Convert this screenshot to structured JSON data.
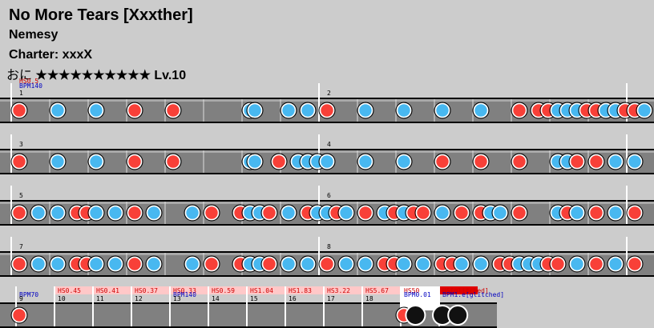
{
  "header": {
    "title": "No More Tears [Xxxther]",
    "artist": "Nemesy",
    "charter": "Charter: xxxX",
    "difficulty_name": "おに",
    "stars": "★★★★★★★★★★",
    "level": "Lv.10"
  },
  "colors": {
    "background": "#cccccc",
    "lane": "#808080",
    "don": "#f84038",
    "ka": "#48b8f0",
    "bar_line": "#ffffff",
    "hs_label": "#d00000",
    "bpm_label": "#0000c0",
    "hs_box": "#ffc8c8"
  },
  "rows": [
    {
      "bars": [
        {
          "number": "1",
          "labels": [
            {
              "text": "HS0.5",
              "color": "red"
            },
            {
              "text": "BPM140",
              "color": "blue"
            }
          ]
        },
        {
          "number": "2",
          "labels": []
        }
      ],
      "notes": [
        {
          "t": 0,
          "type": "don"
        },
        {
          "t": 2,
          "type": "ka"
        },
        {
          "t": 4,
          "type": "ka"
        },
        {
          "t": 6,
          "type": "don"
        },
        {
          "t": 8,
          "type": "don"
        },
        {
          "t": 12,
          "type": "ka"
        },
        {
          "t": 12.25,
          "type": "ka"
        },
        {
          "t": 14,
          "type": "ka"
        },
        {
          "t": 15,
          "type": "ka"
        },
        {
          "t": 16,
          "type": "don"
        },
        {
          "t": 18,
          "type": "ka"
        },
        {
          "t": 20,
          "type": "ka"
        },
        {
          "t": 22,
          "type": "ka"
        },
        {
          "t": 24,
          "type": "ka"
        },
        {
          "t": 26,
          "type": "don"
        },
        {
          "t": 27,
          "type": "don"
        },
        {
          "t": 27.5,
          "type": "don"
        },
        {
          "t": 28,
          "type": "ka"
        },
        {
          "t": 28.5,
          "type": "ka"
        },
        {
          "t": 29,
          "type": "ka"
        },
        {
          "t": 29.5,
          "type": "don"
        },
        {
          "t": 30,
          "type": "don"
        },
        {
          "t": 30.5,
          "type": "ka"
        },
        {
          "t": 31,
          "type": "ka"
        },
        {
          "t": 31.5,
          "type": "don"
        },
        {
          "t": 32,
          "type": "don"
        },
        {
          "t": 32.5,
          "type": "ka"
        }
      ]
    },
    {
      "bars": [
        {
          "number": "3",
          "labels": []
        },
        {
          "number": "4",
          "labels": []
        }
      ],
      "notes": [
        {
          "t": 0,
          "type": "don"
        },
        {
          "t": 2,
          "type": "ka"
        },
        {
          "t": 4,
          "type": "ka"
        },
        {
          "t": 6,
          "type": "don"
        },
        {
          "t": 8,
          "type": "don"
        },
        {
          "t": 12,
          "type": "ka"
        },
        {
          "t": 12.25,
          "type": "ka"
        },
        {
          "t": 13.5,
          "type": "don"
        },
        {
          "t": 14.5,
          "type": "ka"
        },
        {
          "t": 15,
          "type": "ka"
        },
        {
          "t": 15.5,
          "type": "ka"
        },
        {
          "t": 16,
          "type": "ka"
        },
        {
          "t": 18,
          "type": "ka"
        },
        {
          "t": 20,
          "type": "ka"
        },
        {
          "t": 22,
          "type": "don"
        },
        {
          "t": 24,
          "type": "don"
        },
        {
          "t": 26,
          "type": "don"
        },
        {
          "t": 28,
          "type": "ka"
        },
        {
          "t": 28.5,
          "type": "ka"
        },
        {
          "t": 29,
          "type": "don"
        },
        {
          "t": 30,
          "type": "don"
        },
        {
          "t": 31,
          "type": "ka"
        },
        {
          "t": 32,
          "type": "ka"
        }
      ]
    },
    {
      "bars": [
        {
          "number": "5",
          "labels": []
        },
        {
          "number": "6",
          "labels": []
        }
      ],
      "notes": [
        {
          "t": 0,
          "type": "don"
        },
        {
          "t": 1,
          "type": "ka"
        },
        {
          "t": 2,
          "type": "ka"
        },
        {
          "t": 3,
          "type": "don"
        },
        {
          "t": 3.5,
          "type": "don"
        },
        {
          "t": 4,
          "type": "ka"
        },
        {
          "t": 5,
          "type": "ka"
        },
        {
          "t": 6,
          "type": "don"
        },
        {
          "t": 7,
          "type": "ka"
        },
        {
          "t": 9,
          "type": "ka"
        },
        {
          "t": 10,
          "type": "don"
        },
        {
          "t": 11.5,
          "type": "don"
        },
        {
          "t": 12,
          "type": "ka"
        },
        {
          "t": 12.5,
          "type": "ka"
        },
        {
          "t": 13,
          "type": "don"
        },
        {
          "t": 14,
          "type": "ka"
        },
        {
          "t": 15,
          "type": "don"
        },
        {
          "t": 15.5,
          "type": "ka"
        },
        {
          "t": 16,
          "type": "ka"
        },
        {
          "t": 16.5,
          "type": "don"
        },
        {
          "t": 17,
          "type": "ka"
        },
        {
          "t": 18,
          "type": "don"
        },
        {
          "t": 19,
          "type": "ka"
        },
        {
          "t": 19.5,
          "type": "don"
        },
        {
          "t": 20,
          "type": "ka"
        },
        {
          "t": 20.5,
          "type": "don"
        },
        {
          "t": 21,
          "type": "don"
        },
        {
          "t": 22,
          "type": "ka"
        },
        {
          "t": 23,
          "type": "don"
        },
        {
          "t": 24,
          "type": "don"
        },
        {
          "t": 24.5,
          "type": "ka"
        },
        {
          "t": 25,
          "type": "ka"
        },
        {
          "t": 26,
          "type": "don"
        },
        {
          "t": 28,
          "type": "ka"
        },
        {
          "t": 28.5,
          "type": "don"
        },
        {
          "t": 29,
          "type": "ka"
        },
        {
          "t": 30,
          "type": "don"
        },
        {
          "t": 31,
          "type": "ka"
        },
        {
          "t": 32,
          "type": "don"
        }
      ]
    },
    {
      "bars": [
        {
          "number": "7",
          "labels": []
        },
        {
          "number": "8",
          "labels": []
        }
      ],
      "notes": [
        {
          "t": 0,
          "type": "don"
        },
        {
          "t": 1,
          "type": "ka"
        },
        {
          "t": 2,
          "type": "ka"
        },
        {
          "t": 3,
          "type": "don"
        },
        {
          "t": 3.5,
          "type": "don"
        },
        {
          "t": 4,
          "type": "ka"
        },
        {
          "t": 5,
          "type": "ka"
        },
        {
          "t": 6,
          "type": "don"
        },
        {
          "t": 7,
          "type": "ka"
        },
        {
          "t": 9,
          "type": "ka"
        },
        {
          "t": 10,
          "type": "don"
        },
        {
          "t": 11.5,
          "type": "don"
        },
        {
          "t": 12,
          "type": "ka"
        },
        {
          "t": 12.5,
          "type": "ka"
        },
        {
          "t": 13,
          "type": "don"
        },
        {
          "t": 14,
          "type": "ka"
        },
        {
          "t": 15,
          "type": "ka"
        },
        {
          "t": 16,
          "type": "don"
        },
        {
          "t": 17,
          "type": "ka"
        },
        {
          "t": 18,
          "type": "ka"
        },
        {
          "t": 19,
          "type": "don"
        },
        {
          "t": 19.5,
          "type": "don"
        },
        {
          "t": 20,
          "type": "ka"
        },
        {
          "t": 21,
          "type": "ka"
        },
        {
          "t": 22,
          "type": "don"
        },
        {
          "t": 22.5,
          "type": "don"
        },
        {
          "t": 23,
          "type": "ka"
        },
        {
          "t": 24,
          "type": "ka"
        },
        {
          "t": 25,
          "type": "don"
        },
        {
          "t": 25.5,
          "type": "don"
        },
        {
          "t": 26,
          "type": "ka"
        },
        {
          "t": 26.5,
          "type": "ka"
        },
        {
          "t": 27,
          "type": "ka"
        },
        {
          "t": 27.5,
          "type": "don"
        },
        {
          "t": 28,
          "type": "don"
        },
        {
          "t": 29,
          "type": "ka"
        },
        {
          "t": 30,
          "type": "don"
        },
        {
          "t": 31,
          "type": "ka"
        },
        {
          "t": 32,
          "type": "don"
        }
      ]
    }
  ],
  "final_row": {
    "bars": [
      {
        "number": "9",
        "hs": "",
        "bpm": "BPM70"
      },
      {
        "number": "10",
        "hs": "HS0.45",
        "bpm": ""
      },
      {
        "number": "11",
        "hs": "HS0.41",
        "bpm": ""
      },
      {
        "number": "12",
        "hs": "HS0.37",
        "bpm": ""
      },
      {
        "number": "13",
        "hs": "HS0.33",
        "bpm": "BPM140"
      },
      {
        "number": "14",
        "hs": "HS0.59",
        "bpm": ""
      },
      {
        "number": "15",
        "hs": "HS1.04",
        "bpm": ""
      },
      {
        "number": "16",
        "hs": "HS1.83",
        "bpm": ""
      },
      {
        "number": "17",
        "hs": "HS3.22",
        "bpm": ""
      },
      {
        "number": "18",
        "hs": "HS5.67",
        "bpm": ""
      },
      {
        "number": "",
        "hs": "HS50",
        "bpm": "BPM0.01"
      },
      {
        "number": "",
        "hs": "HS[glitched]",
        "bpm": "BPM1.e[glitched]"
      }
    ],
    "notes": [
      {
        "bar": 0,
        "t": 0,
        "type": "don"
      },
      {
        "bar": 10,
        "t": 0,
        "type": "don"
      },
      {
        "bar": 10,
        "t": 0.3,
        "type": "big-dark"
      },
      {
        "bar": 11,
        "t": 0,
        "type": "big-dark"
      },
      {
        "bar": 11,
        "t": 0.4,
        "type": "big-dark"
      }
    ]
  }
}
